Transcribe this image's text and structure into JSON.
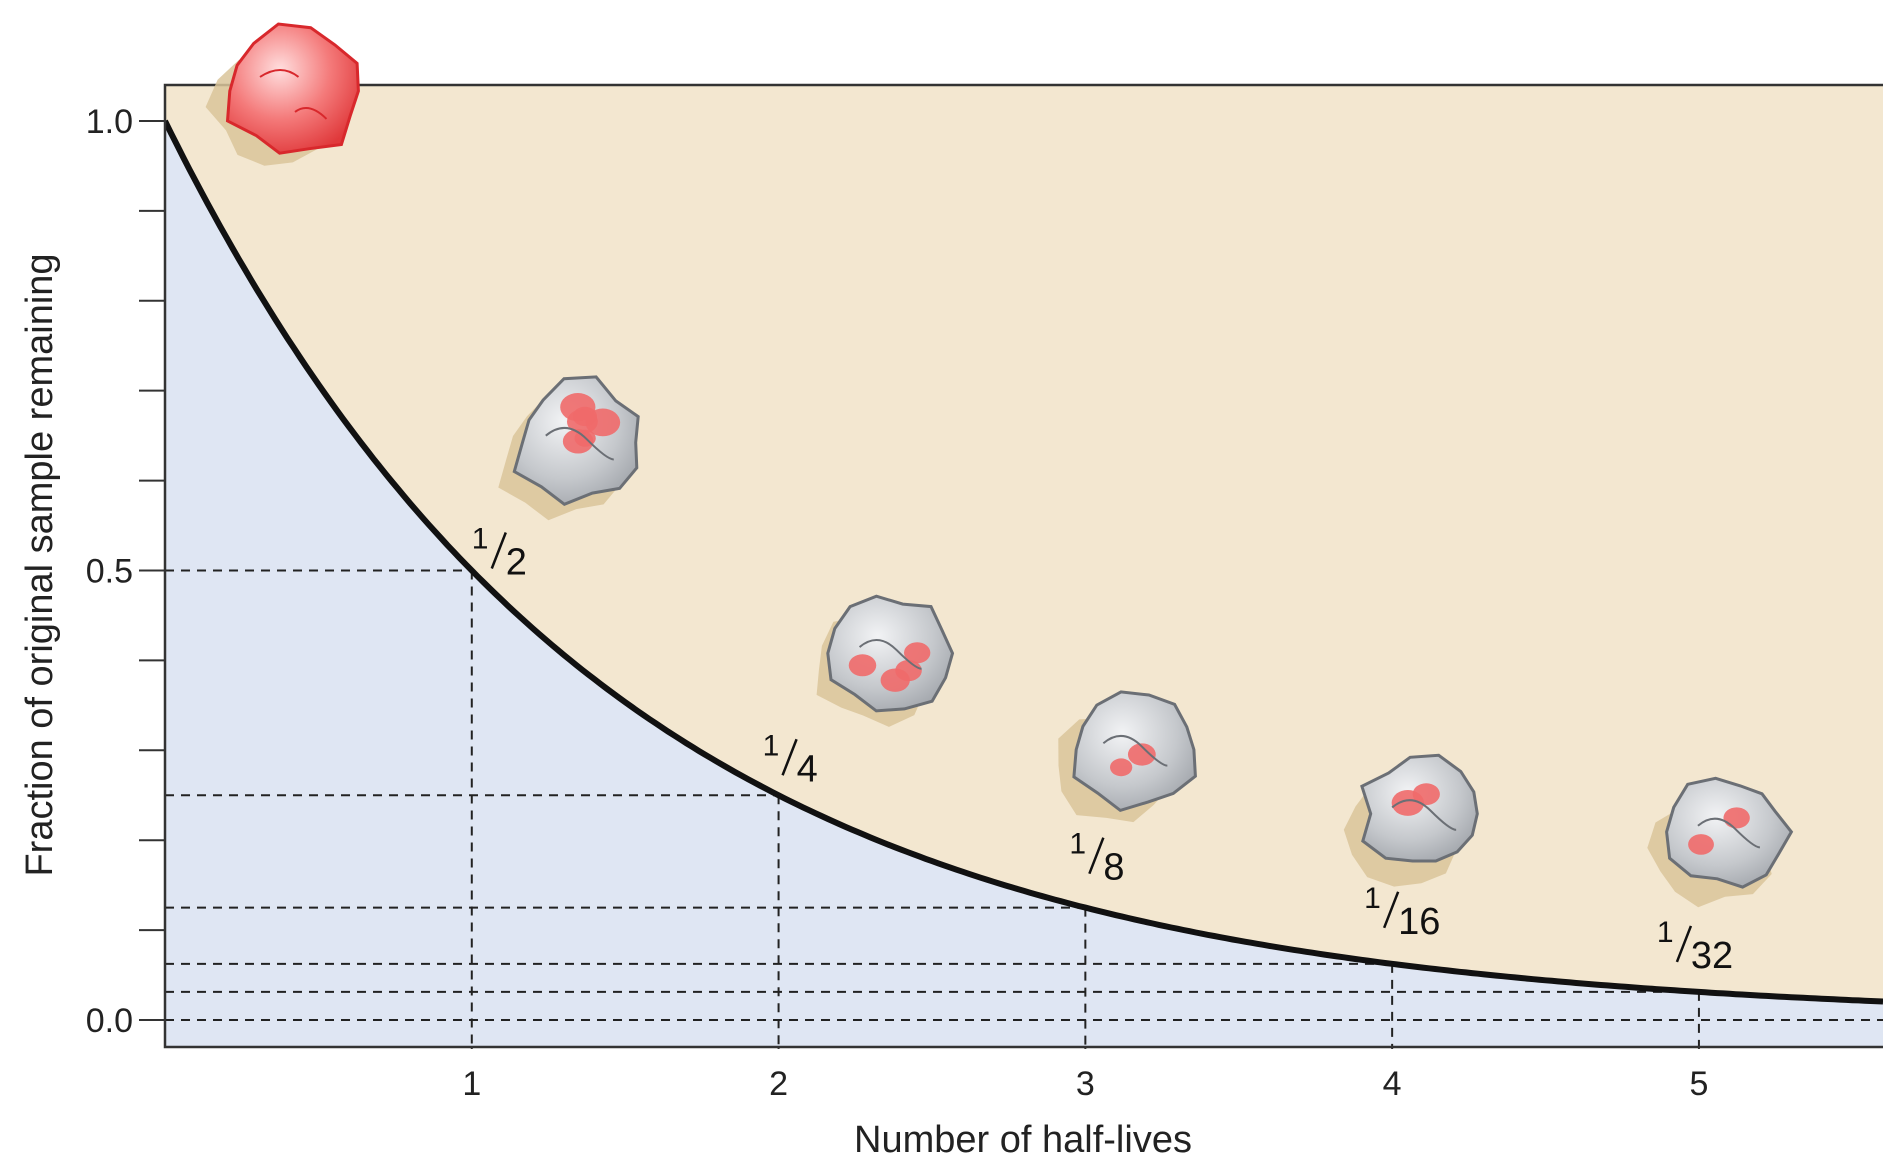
{
  "chart_data": {
    "type": "line",
    "title": "",
    "xlabel": "Number of half-lives",
    "ylabel": "Fraction of original sample remaining",
    "x_ticks": [
      "1",
      "2",
      "3",
      "4",
      "5"
    ],
    "y_ticks": [
      "0.0",
      "0.5",
      "1.0"
    ],
    "xlim": [
      0,
      5.6
    ],
    "ylim": [
      -0.03,
      1.04
    ],
    "grid": false,
    "series": [
      {
        "values": [
          {
            "x": 0,
            "y": 1.0
          },
          {
            "x": 1,
            "y": 0.5
          },
          {
            "x": 2,
            "y": 0.25
          },
          {
            "x": 3,
            "y": 0.125
          },
          {
            "x": 4,
            "y": 0.0625
          },
          {
            "x": 5,
            "y": 0.03125
          }
        ]
      }
    ],
    "annotations": [
      {
        "x": 1,
        "y": 0.5,
        "num": "1",
        "den": "2"
      },
      {
        "x": 2,
        "y": 0.25,
        "num": "1",
        "den": "4"
      },
      {
        "x": 3,
        "y": 0.125,
        "num": "1",
        "den": "8"
      },
      {
        "x": 4,
        "y": 0.0625,
        "num": "1",
        "den": "16"
      },
      {
        "x": 5,
        "y": 0.03125,
        "num": "1",
        "den": "32"
      }
    ],
    "samples": [
      {
        "x": 0,
        "remaining": 1.0
      },
      {
        "x": 1,
        "remaining": 0.5
      },
      {
        "x": 2,
        "remaining": 0.25
      },
      {
        "x": 3,
        "remaining": 0.125
      },
      {
        "x": 4,
        "remaining": 0.0625
      },
      {
        "x": 5,
        "remaining": 0.03125
      }
    ],
    "colors": {
      "above_curve": "#f3e7d0",
      "below_curve": "#dfe6f3",
      "curve": "#111111",
      "rock_red": "#f06a6a",
      "rock_gray": "#c7c9cc",
      "rock_shadow": "#d9c49a"
    }
  }
}
